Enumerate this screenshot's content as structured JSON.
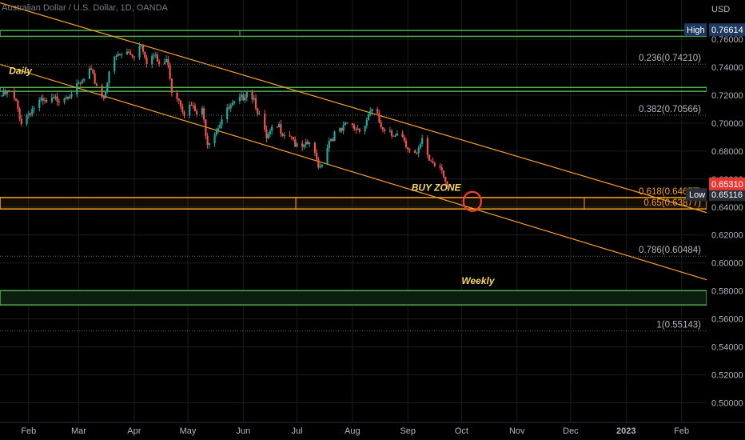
{
  "header": {
    "title": "Australian Dollar / U.S. Dollar, 1D, OANDA"
  },
  "price_axis": {
    "currency": "USD"
  },
  "colors": {
    "background": "#000000",
    "grid": "#1c1c1c",
    "up_candle": "#26a69a",
    "down_candle": "#ef5350",
    "fib_line": "#666666",
    "channel": "#f7a12b",
    "zone_green": "#4caf50",
    "buy_zone": "#f7a12b",
    "text": "#b2b5be",
    "annotation": "#f5d76e",
    "circle": "#ff3b3b"
  },
  "chart_data": {
    "type": "candlestick",
    "symbol": "Australian Dollar / U.S. Dollar",
    "timeframe": "1D",
    "source": "OANDA",
    "ylim": [
      0.486,
      0.788
    ],
    "ytick_values": [
      0.76,
      0.74,
      0.72,
      0.7,
      0.68,
      0.66,
      0.64,
      0.62,
      0.6,
      0.58,
      0.56,
      0.54,
      0.52,
      0.5
    ],
    "ytick_labels": [
      "0.76000",
      "0.74000",
      "0.72000",
      "0.70000",
      "0.68000",
      "0.66000",
      "0.64000",
      "0.62000",
      "0.60000",
      "0.58000",
      "0.56000",
      "0.54000",
      "0.52000",
      "0.50000"
    ],
    "x_range": [
      "2022-01-16",
      "2023-02-15"
    ],
    "x_ticks": [
      {
        "label": "Feb",
        "date": "2022-02-01"
      },
      {
        "label": "Mar",
        "date": "2022-03-01"
      },
      {
        "label": "Apr",
        "date": "2022-04-01"
      },
      {
        "label": "May",
        "date": "2022-05-01"
      },
      {
        "label": "Jun",
        "date": "2022-06-01"
      },
      {
        "label": "Jul",
        "date": "2022-07-01"
      },
      {
        "label": "Aug",
        "date": "2022-08-01"
      },
      {
        "label": "Sep",
        "date": "2022-09-01"
      },
      {
        "label": "Oct",
        "date": "2022-10-01"
      },
      {
        "label": "Nov",
        "date": "2022-11-01"
      },
      {
        "label": "Dec",
        "date": "2022-12-01"
      },
      {
        "label": "2023",
        "date": "2023-01-01"
      },
      {
        "label": "Feb",
        "date": "2023-02-01"
      }
    ],
    "price_path": [
      [
        "2022-01-16",
        0.719
      ],
      [
        "2022-01-21",
        0.722
      ],
      [
        "2022-01-25",
        0.714
      ],
      [
        "2022-01-28",
        0.701
      ],
      [
        "2022-02-02",
        0.709
      ],
      [
        "2022-02-07",
        0.715
      ],
      [
        "2022-02-11",
        0.714
      ],
      [
        "2022-02-15",
        0.716
      ],
      [
        "2022-02-18",
        0.718
      ],
      [
        "2022-02-23",
        0.721
      ],
      [
        "2022-02-28",
        0.725
      ],
      [
        "2022-03-03",
        0.729
      ],
      [
        "2022-03-07",
        0.737
      ],
      [
        "2022-03-10",
        0.73
      ],
      [
        "2022-03-15",
        0.718
      ],
      [
        "2022-03-18",
        0.738
      ],
      [
        "2022-03-22",
        0.747
      ],
      [
        "2022-03-28",
        0.75
      ],
      [
        "2022-04-01",
        0.749
      ],
      [
        "2022-04-05",
        0.758
      ],
      [
        "2022-04-08",
        0.745
      ],
      [
        "2022-04-12",
        0.748
      ],
      [
        "2022-04-15",
        0.742
      ],
      [
        "2022-04-20",
        0.744
      ],
      [
        "2022-04-22",
        0.724
      ],
      [
        "2022-04-26",
        0.718
      ],
      [
        "2022-04-29",
        0.708
      ],
      [
        "2022-05-03",
        0.712
      ],
      [
        "2022-05-06",
        0.706
      ],
      [
        "2022-05-09",
        0.708
      ],
      [
        "2022-05-12",
        0.687
      ],
      [
        "2022-05-16",
        0.694
      ],
      [
        "2022-05-20",
        0.703
      ],
      [
        "2022-05-24",
        0.71
      ],
      [
        "2022-05-31",
        0.717
      ],
      [
        "2022-06-03",
        0.724
      ],
      [
        "2022-06-07",
        0.718
      ],
      [
        "2022-06-10",
        0.705
      ],
      [
        "2022-06-14",
        0.688
      ],
      [
        "2022-06-17",
        0.694
      ],
      [
        "2022-06-21",
        0.697
      ],
      [
        "2022-06-24",
        0.693
      ],
      [
        "2022-06-28",
        0.692
      ],
      [
        "2022-07-01",
        0.682
      ],
      [
        "2022-07-05",
        0.682
      ],
      [
        "2022-07-08",
        0.686
      ],
      [
        "2022-07-12",
        0.673
      ],
      [
        "2022-07-14",
        0.669
      ],
      [
        "2022-07-19",
        0.688
      ],
      [
        "2022-07-22",
        0.692
      ],
      [
        "2022-07-26",
        0.694
      ],
      [
        "2022-07-29",
        0.699
      ],
      [
        "2022-08-03",
        0.696
      ],
      [
        "2022-08-08",
        0.699
      ],
      [
        "2022-08-11",
        0.71
      ],
      [
        "2022-08-15",
        0.704
      ],
      [
        "2022-08-18",
        0.693
      ],
      [
        "2022-08-23",
        0.691
      ],
      [
        "2022-08-26",
        0.695
      ],
      [
        "2022-08-30",
        0.689
      ],
      [
        "2022-09-02",
        0.68
      ],
      [
        "2022-09-06",
        0.676
      ],
      [
        "2022-09-09",
        0.687
      ],
      [
        "2022-09-13",
        0.674
      ],
      [
        "2022-09-16",
        0.671
      ],
      [
        "2022-09-20",
        0.669
      ],
      [
        "2022-09-23",
        0.6531
      ]
    ],
    "high": {
      "label": "High",
      "value": "0.76614"
    },
    "low": {
      "label": "Low",
      "value": "0.65116"
    },
    "last_price": "0.65310",
    "fib_levels": [
      {
        "label": "0.236(0.74210)",
        "value": 0.7421
      },
      {
        "label": "0.382(0.70566)",
        "value": 0.70566
      },
      {
        "label": "0.618(0.64677)",
        "value": 0.64677
      },
      {
        "label": "0.65(0.63877)",
        "value": 0.63877
      },
      {
        "label": "0.786(0.60484)",
        "value": 0.60484
      },
      {
        "label": "1(0.55143)",
        "value": 0.55143
      }
    ],
    "zones": {
      "top_green": [
        0.762,
        0.7662
      ],
      "daily_green": [
        0.7227,
        0.7255
      ],
      "buy_zone": [
        0.6386,
        0.6468
      ],
      "weekly_green": [
        0.57,
        0.5802
      ]
    },
    "channel_upper": [
      [
        "2022-01-16",
        0.786
      ],
      [
        "2023-02-15",
        0.636
      ]
    ],
    "channel_lower": [
      [
        "2022-01-16",
        0.742
      ],
      [
        "2023-02-15",
        0.588
      ]
    ],
    "annotations": [
      {
        "text": "Daily",
        "date": "2022-01-21",
        "value": 0.735
      },
      {
        "text": "BUY ZONE",
        "date": "2022-09-03",
        "value": 0.6515
      },
      {
        "text": "Weekly",
        "date": "2022-10-01",
        "value": 0.585
      }
    ],
    "marker_circle": {
      "date": "2022-10-07",
      "value": 0.644
    }
  }
}
